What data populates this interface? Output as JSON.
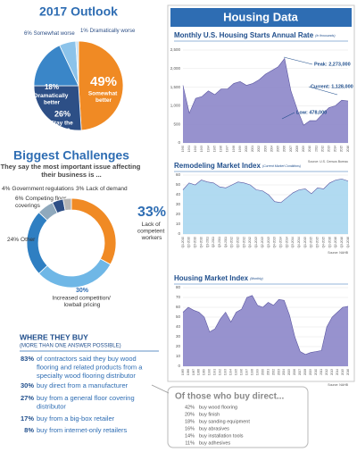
{
  "chart_data": [
    {
      "type": "pie",
      "title": "2017 Outlook",
      "categories": [
        "Somewhat better",
        "Stay the same",
        "Dramatically better",
        "Somewhat worse",
        "Dramatically worse"
      ],
      "values": [
        49,
        26,
        18,
        6,
        1
      ],
      "value_labels": [
        "49%",
        "26%",
        "18%",
        "6%",
        "1%"
      ],
      "colors": [
        "#f08a24",
        "#2d4f86",
        "#3a86c8",
        "#8cc3ea",
        "#c9e2f4"
      ]
    },
    {
      "type": "donut",
      "title": "Biggest Challenges",
      "subtitle": "They say the most important issue affecting their business is ...",
      "categories": [
        "Lack of competent workers",
        "Increased competition/ lowball pricing",
        "Other",
        "Competing floor coverings",
        "Government regulations",
        "Lack of demand"
      ],
      "values": [
        33,
        30,
        24,
        6,
        4,
        3
      ],
      "value_labels": [
        "33%",
        "30%",
        "24%",
        "6%",
        "4%",
        "3%"
      ],
      "colors": [
        "#f08a24",
        "#6fb7e6",
        "#2f7fc2",
        "#8fa9bd",
        "#2d4f86",
        "#b5b5b5"
      ]
    },
    {
      "type": "area",
      "section_title": "Housing Data",
      "title": "Monthly U.S. Housing Starts Annual Rate",
      "subtitle": "(In thousands)",
      "categories": [
        "1990",
        "1991",
        "1992",
        "1993",
        "1994",
        "1995",
        "1996",
        "1997",
        "1998",
        "1999",
        "2000",
        "2001",
        "2002",
        "2003",
        "2004",
        "2005",
        "2006",
        "2007",
        "2008",
        "2009",
        "2010",
        "2011",
        "2012",
        "2013",
        "2014",
        "2015",
        "2016"
      ],
      "values": [
        1550,
        800,
        1200,
        1250,
        1400,
        1300,
        1450,
        1450,
        1600,
        1650,
        1550,
        1600,
        1700,
        1850,
        1950,
        2050,
        2273,
        1400,
        900,
        478,
        600,
        600,
        780,
        950,
        1000,
        1150,
        1128
      ],
      "ylim": [
        0,
        2500
      ],
      "yticks": [
        0,
        500,
        {
          "value": 1000,
          "label": "1,000"
        },
        {
          "value": 1500,
          "label": "1,500"
        },
        {
          "value": 2000,
          "label": "2,000"
        },
        {
          "value": 2500,
          "label": "2,500"
        }
      ],
      "color": "#8c86c9",
      "grid": true,
      "annotations": [
        "Peak: 2,273,000",
        "Current: 1,128,000",
        "Low: 478,000"
      ],
      "source": "Source: U.S. Census Bureau"
    },
    {
      "type": "area",
      "title": "Remodeling Market Index",
      "subtitle": "(Current Market Conditions)",
      "categories": [
        "Q1-2010",
        "Q2-2010",
        "Q3-2010",
        "Q4-2010",
        "Q1-2011",
        "Q2-2011",
        "Q3-2011",
        "Q4-2011",
        "Q1-2012",
        "Q2-2012",
        "Q3-2012",
        "Q4-2012",
        "Q1-2013",
        "Q2-2013",
        "Q3-2013",
        "Q4-2013",
        "Q1-2014",
        "Q2-2014",
        "Q3-2014",
        "Q4-2014",
        "Q1-2015",
        "Q2-2015",
        "Q3-2015",
        "Q4-2015",
        "Q1-2016",
        "Q2-2016",
        "Q3-2016",
        "Q4-2016"
      ],
      "values": [
        45,
        52,
        50,
        55,
        53,
        52,
        48,
        47,
        50,
        53,
        52,
        50,
        45,
        44,
        40,
        33,
        32,
        37,
        42,
        45,
        46,
        41,
        47,
        46,
        52,
        55,
        56,
        54
      ],
      "ylim": [
        0,
        60
      ],
      "yticks": [
        0,
        10,
        20,
        30,
        40,
        50,
        60
      ],
      "color": "#a9d6f0",
      "grid": true,
      "source": "Source: NAHB"
    },
    {
      "type": "area",
      "title": "Housing Market Index",
      "subtitle": "(Monthly)",
      "categories": [
        "1985",
        "1986",
        "1987",
        "1988",
        "1989",
        "1990",
        "1991",
        "1992",
        "1993",
        "1994",
        "1995",
        "1996",
        "1997",
        "1998",
        "1999",
        "2000",
        "2001",
        "2002",
        "2003",
        "2004",
        "2005",
        "2006",
        "2007",
        "2008",
        "2009",
        "2010",
        "2011",
        "2012",
        "2013",
        "2014",
        "2015",
        "2016"
      ],
      "values": [
        55,
        60,
        57,
        55,
        50,
        35,
        38,
        48,
        55,
        45,
        55,
        58,
        70,
        72,
        62,
        60,
        65,
        62,
        68,
        67,
        52,
        30,
        15,
        12,
        14,
        15,
        16,
        40,
        50,
        55,
        60,
        61
      ],
      "ylim": [
        0,
        80
      ],
      "yticks": [
        0,
        10,
        20,
        30,
        40,
        50,
        60,
        70,
        80
      ],
      "color": "#8c86c9",
      "grid": true,
      "source": "Source: NAHB"
    }
  ],
  "where_they_buy": {
    "title": "WHERE THEY BUY",
    "subtitle": "(MORE THAN ONE ANSWER POSSIBLE)",
    "items": [
      {
        "percent": "83%",
        "text": "of contractors said they buy wood flooring and related products from a specialty wood flooring distributor"
      },
      {
        "percent": "30%",
        "text": "buy direct from a manufacturer"
      },
      {
        "percent": "27%",
        "text": "buy from a general floor covering distributor"
      },
      {
        "percent": "17%",
        "text": "buy from a big-box retailer"
      },
      {
        "percent": "8%",
        "text": "buy from internet-only retailers"
      }
    ]
  },
  "buy_direct": {
    "title": "Of those who buy direct...",
    "items": [
      {
        "percent": "42%",
        "text": "buy wood flooring"
      },
      {
        "percent": "20%",
        "text": "buy finish"
      },
      {
        "percent": "18%",
        "text": "buy sanding equipment"
      },
      {
        "percent": "16%",
        "text": "buy abrasives"
      },
      {
        "percent": "14%",
        "text": "buy installation tools"
      },
      {
        "percent": "11%",
        "text": "buy adhesives"
      }
    ]
  }
}
